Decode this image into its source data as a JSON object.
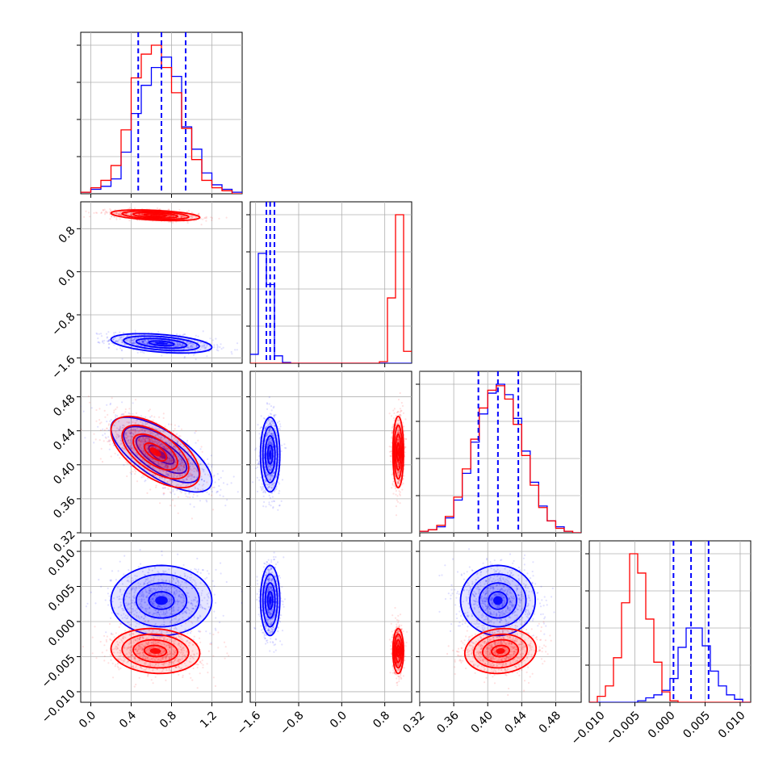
{
  "chart_data": {
    "type": "corner",
    "colors": {
      "red": "#ff0000",
      "blue": "#0000ff",
      "grid": "#b0b0b0"
    },
    "parameters": [
      {
        "range": [
          -0.1,
          1.5
        ],
        "ticks": [
          0.0,
          0.4,
          0.8,
          1.2
        ],
        "tick_labels": [
          "0.0",
          "0.4",
          "0.8",
          "1.2"
        ]
      },
      {
        "range": [
          -1.7,
          1.3
        ],
        "ticks": [
          -1.6,
          -0.8,
          0.0,
          0.8
        ],
        "tick_labels": [
          "−1.6",
          "−0.8",
          "0.0",
          "0.8"
        ]
      },
      {
        "range": [
          0.32,
          0.51
        ],
        "ticks": [
          0.32,
          0.36,
          0.4,
          0.44,
          0.48
        ],
        "tick_labels": [
          "0.32",
          "0.36",
          "0.40",
          "0.44",
          "0.48"
        ]
      },
      {
        "range": [
          -0.0115,
          0.0115
        ],
        "ticks": [
          -0.01,
          -0.005,
          0.0,
          0.005,
          0.01
        ],
        "tick_labels": [
          "−0.010",
          "−0.005",
          "0.000",
          "0.005",
          "0.010"
        ]
      }
    ],
    "quantile_lines": [
      [
        0.47,
        0.7,
        0.94
      ],
      [
        -1.4,
        -1.33,
        -1.25
      ],
      [
        0.389,
        0.412,
        0.436
      ],
      [
        0.0005,
        0.003,
        0.0055
      ]
    ],
    "histograms": [
      {
        "bins": [
          -0.1,
          0.0,
          0.1,
          0.2,
          0.3,
          0.4,
          0.5,
          0.6,
          0.7,
          0.8,
          0.9,
          1.0,
          1.1,
          1.2,
          1.3,
          1.4,
          1.5
        ],
        "series": [
          {
            "color": "blue",
            "counts": [
              0.01,
              0.03,
              0.05,
              0.1,
              0.28,
              0.54,
              0.73,
              0.85,
              0.92,
              0.79,
              0.45,
              0.3,
              0.14,
              0.06,
              0.03,
              0.01
            ]
          },
          {
            "color": "red",
            "counts": [
              0.01,
              0.04,
              0.09,
              0.19,
              0.43,
              0.78,
              0.94,
              1.0,
              0.85,
              0.68,
              0.44,
              0.23,
              0.09,
              0.04,
              0.02,
              0.0
            ]
          }
        ]
      },
      {
        "bins": [
          -1.7,
          -1.55,
          -1.4,
          -1.25,
          -1.1,
          -0.95,
          -0.8,
          -0.65,
          -0.5,
          -0.35,
          -0.2,
          -0.05,
          0.1,
          0.25,
          0.4,
          0.55,
          0.7,
          0.85,
          1.0,
          1.15,
          1.3
        ],
        "series": [
          {
            "color": "blue",
            "counts": [
              0.06,
              0.74,
              0.53,
              0.05,
              0.005,
              0,
              0,
              0,
              0,
              0,
              0,
              0,
              0,
              0,
              0,
              0,
              0,
              0,
              0,
              0
            ]
          },
          {
            "color": "red",
            "counts": [
              0,
              0,
              0,
              0,
              0,
              0,
              0,
              0,
              0,
              0,
              0,
              0,
              0,
              0,
              0,
              0,
              0.01,
              0.44,
              1.0,
              0.08
            ]
          }
        ]
      },
      {
        "bins": [
          0.32,
          0.33,
          0.34,
          0.35,
          0.36,
          0.37,
          0.38,
          0.39,
          0.4,
          0.41,
          0.42,
          0.43,
          0.44,
          0.45,
          0.46,
          0.47,
          0.48,
          0.49,
          0.5,
          0.51
        ],
        "series": [
          {
            "color": "blue",
            "counts": [
              0.01,
              0.02,
              0.04,
              0.1,
              0.22,
              0.4,
              0.61,
              0.8,
              0.94,
              1.0,
              0.93,
              0.77,
              0.55,
              0.34,
              0.18,
              0.08,
              0.04,
              0.01,
              0.0
            ]
          },
          {
            "color": "red",
            "counts": [
              0.01,
              0.02,
              0.05,
              0.11,
              0.24,
              0.43,
              0.63,
              0.84,
              0.96,
              0.99,
              0.9,
              0.73,
              0.52,
              0.32,
              0.17,
              0.08,
              0.03,
              0.01,
              0.0
            ]
          }
        ]
      },
      {
        "bins": [
          -0.0115,
          -0.01035,
          -0.0092,
          -0.00805,
          -0.0069,
          -0.00575,
          -0.0046,
          -0.00345,
          -0.0023,
          -0.00115,
          0.0,
          0.00115,
          0.0023,
          0.00345,
          0.0046,
          0.00575,
          0.0069,
          0.00805,
          0.0092,
          0.01035,
          0.0115
        ],
        "series": [
          {
            "color": "blue",
            "counts": [
              0,
              0,
              0,
              0,
              0,
              0,
              0.01,
              0.03,
              0.05,
              0.08,
              0.16,
              0.37,
              0.5,
              0.5,
              0.38,
              0.21,
              0.11,
              0.05,
              0.02,
              0.0
            ]
          },
          {
            "color": "red",
            "counts": [
              0.0,
              0.04,
              0.11,
              0.3,
              0.67,
              1.0,
              0.87,
              0.56,
              0.27,
              0.07,
              0.01,
              0,
              0,
              0,
              0,
              0,
              0,
              0,
              0,
              0
            ]
          }
        ]
      }
    ],
    "clusters": [
      {
        "color": "blue",
        "mean": [
          0.7,
          -1.33,
          0.412,
          0.003
        ],
        "sd": [
          0.25,
          0.09,
          0.022,
          0.0025
        ],
        "corr": {
          "0-1": -0.4,
          "0-2": -0.7,
          "0-3": 0.0,
          "1-2": 0.0,
          "1-3": 0.0,
          "2-3": 0.0
        }
      },
      {
        "color": "red",
        "mean": [
          0.64,
          1.05,
          0.415,
          -0.0042
        ],
        "sd": [
          0.22,
          0.05,
          0.021,
          0.0016
        ],
        "corr": {
          "0-1": -0.4,
          "0-2": -0.6,
          "0-3": -0.1,
          "1-2": 0.0,
          "1-3": 0.0,
          "2-3": 0.1
        }
      }
    ],
    "grid": true
  }
}
